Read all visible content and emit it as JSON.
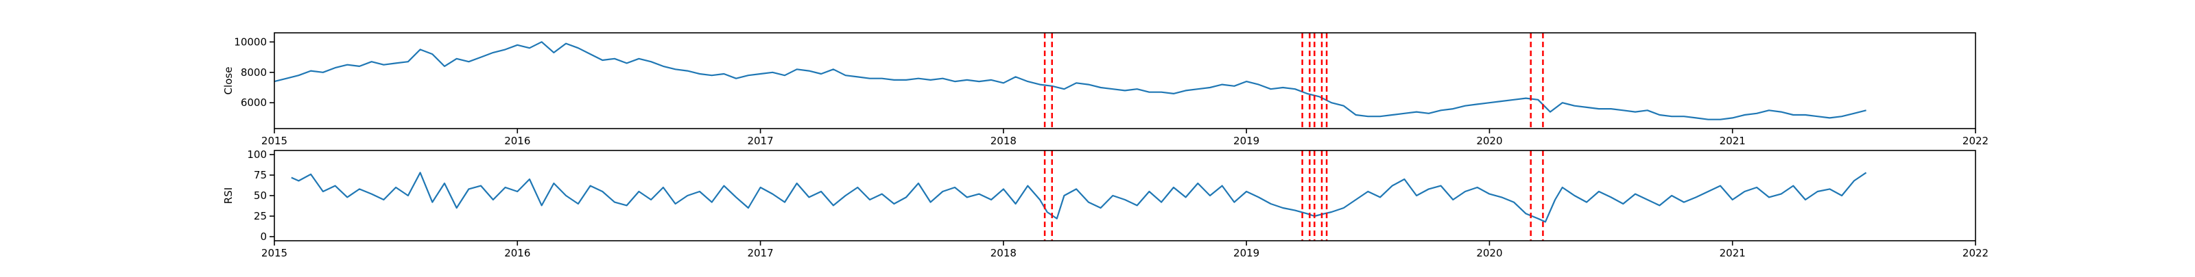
{
  "chart_data": [
    {
      "type": "line",
      "ylabel": "Close",
      "xlabel": "",
      "xlim": [
        2015.0,
        2022.0
      ],
      "ylim": [
        4300,
        10600
      ],
      "x_ticks": [
        2015,
        2016,
        2017,
        2018,
        2019,
        2020,
        2021,
        2022
      ],
      "x_tick_labels": [
        "2015",
        "2016",
        "2017",
        "2018",
        "2019",
        "2020",
        "2021",
        "2022"
      ],
      "y_ticks": [
        6000,
        8000,
        10000
      ],
      "y_tick_labels": [
        "6000",
        "8000",
        "10000"
      ],
      "grid": false,
      "line_color": "#1f77b4",
      "series": [
        {
          "x": [
            2015.0,
            2015.05,
            2015.1,
            2015.15,
            2015.2,
            2015.25,
            2015.3,
            2015.35,
            2015.4,
            2015.45,
            2015.5,
            2015.55,
            2015.6,
            2015.65,
            2015.7,
            2015.75,
            2015.8,
            2015.85,
            2015.9,
            2015.95,
            2016.0,
            2016.05,
            2016.1,
            2016.15,
            2016.2,
            2016.25,
            2016.3,
            2016.35,
            2016.4,
            2016.45,
            2016.5,
            2016.55,
            2016.6,
            2016.65,
            2016.7,
            2016.75,
            2016.8,
            2016.85,
            2016.9,
            2016.95,
            2017.0,
            2017.05,
            2017.1,
            2017.15,
            2017.2,
            2017.25,
            2017.3,
            2017.35,
            2017.4,
            2017.45,
            2017.5,
            2017.55,
            2017.6,
            2017.65,
            2017.7,
            2017.75,
            2017.8,
            2017.85,
            2017.9,
            2017.95,
            2018.0,
            2018.05,
            2018.1,
            2018.15,
            2018.2,
            2018.25,
            2018.3,
            2018.35,
            2018.4,
            2018.45,
            2018.5,
            2018.55,
            2018.6,
            2018.65,
            2018.7,
            2018.75,
            2018.8,
            2018.85,
            2018.9,
            2018.95,
            2019.0,
            2019.05,
            2019.1,
            2019.15,
            2019.2,
            2019.25,
            2019.3,
            2019.35,
            2019.4,
            2019.45,
            2019.5,
            2019.55,
            2019.6,
            2019.65,
            2019.7,
            2019.75,
            2019.8,
            2019.85,
            2019.9,
            2019.95,
            2020.0,
            2020.05,
            2020.1,
            2020.15,
            2020.2,
            2020.25,
            2020.3,
            2020.35,
            2020.4,
            2020.45,
            2020.5,
            2020.55,
            2020.6,
            2020.65,
            2020.7,
            2020.75,
            2020.8,
            2020.85,
            2020.9,
            2020.95,
            2021.0,
            2021.05,
            2021.1,
            2021.15,
            2021.2,
            2021.25,
            2021.3,
            2021.35,
            2021.4,
            2021.45,
            2021.5,
            2021.55
          ],
          "y": [
            7400,
            7600,
            7800,
            8100,
            8000,
            8300,
            8500,
            8400,
            8700,
            8500,
            8600,
            8700,
            9500,
            9200,
            8400,
            8900,
            8700,
            9000,
            9300,
            9500,
            9800,
            9600,
            10000,
            9300,
            9900,
            9600,
            9200,
            8800,
            8900,
            8600,
            8900,
            8700,
            8400,
            8200,
            8100,
            7900,
            7800,
            7900,
            7600,
            7800,
            7900,
            8000,
            7800,
            8200,
            8100,
            7900,
            8200,
            7800,
            7700,
            7600,
            7600,
            7500,
            7500,
            7600,
            7500,
            7600,
            7400,
            7500,
            7400,
            7500,
            7300,
            7700,
            7400,
            7200,
            7100,
            6900,
            7300,
            7200,
            7000,
            6900,
            6800,
            6900,
            6700,
            6700,
            6600,
            6800,
            6900,
            7000,
            7200,
            7100,
            7400,
            7200,
            6900,
            7000,
            6900,
            6600,
            6400,
            6000,
            5800,
            5200,
            5100,
            5100,
            5200,
            5300,
            5400,
            5300,
            5500,
            5600,
            5800,
            5900,
            6000,
            6100,
            6200,
            6300,
            6200,
            5400,
            6000,
            5800,
            5700,
            5600,
            5600,
            5500,
            5400,
            5500,
            5200,
            5100,
            5100,
            5000,
            4900,
            4900,
            5000,
            5200,
            5300,
            5500,
            5400,
            5200,
            5200,
            5100,
            5000,
            5100,
            5300,
            5500
          ]
        }
      ]
    },
    {
      "type": "line",
      "ylabel": "RSI",
      "xlabel": "",
      "xlim": [
        2015.0,
        2022.0
      ],
      "ylim": [
        -5,
        105
      ],
      "x_ticks": [
        2015,
        2016,
        2017,
        2018,
        2019,
        2020,
        2021,
        2022
      ],
      "x_tick_labels": [
        "2015",
        "2016",
        "2017",
        "2018",
        "2019",
        "2020",
        "2021",
        "2022"
      ],
      "y_ticks": [
        0,
        25,
        50,
        75,
        100
      ],
      "y_tick_labels": [
        "0",
        "25",
        "50",
        "75",
        "100"
      ],
      "grid": false,
      "line_color": "#1f77b4",
      "series": [
        {
          "x": [
            2015.07,
            2015.1,
            2015.15,
            2015.2,
            2015.25,
            2015.3,
            2015.35,
            2015.4,
            2015.45,
            2015.5,
            2015.55,
            2015.6,
            2015.65,
            2015.7,
            2015.75,
            2015.8,
            2015.85,
            2015.9,
            2015.95,
            2016.0,
            2016.05,
            2016.1,
            2016.15,
            2016.2,
            2016.25,
            2016.3,
            2016.35,
            2016.4,
            2016.45,
            2016.5,
            2016.55,
            2016.6,
            2016.65,
            2016.7,
            2016.75,
            2016.8,
            2016.85,
            2016.9,
            2016.95,
            2017.0,
            2017.05,
            2017.1,
            2017.15,
            2017.2,
            2017.25,
            2017.3,
            2017.35,
            2017.4,
            2017.45,
            2017.5,
            2017.55,
            2017.6,
            2017.65,
            2017.7,
            2017.75,
            2017.8,
            2017.85,
            2017.9,
            2017.95,
            2018.0,
            2018.05,
            2018.1,
            2018.15,
            2018.18,
            2018.22,
            2018.25,
            2018.3,
            2018.35,
            2018.4,
            2018.45,
            2018.5,
            2018.55,
            2018.6,
            2018.65,
            2018.7,
            2018.75,
            2018.8,
            2018.85,
            2018.9,
            2018.95,
            2019.0,
            2019.05,
            2019.1,
            2019.15,
            2019.2,
            2019.25,
            2019.28,
            2019.32,
            2019.35,
            2019.4,
            2019.45,
            2019.5,
            2019.55,
            2019.6,
            2019.65,
            2019.7,
            2019.75,
            2019.8,
            2019.85,
            2019.9,
            2019.95,
            2020.0,
            2020.05,
            2020.1,
            2020.15,
            2020.2,
            2020.23,
            2020.27,
            2020.3,
            2020.35,
            2020.4,
            2020.45,
            2020.5,
            2020.55,
            2020.6,
            2020.65,
            2020.7,
            2020.75,
            2020.8,
            2020.85,
            2020.9,
            2020.95,
            2021.0,
            2021.05,
            2021.1,
            2021.15,
            2021.2,
            2021.25,
            2021.3,
            2021.35,
            2021.4,
            2021.45,
            2021.5,
            2021.55
          ],
          "y": [
            72,
            68,
            76,
            55,
            62,
            48,
            58,
            52,
            45,
            60,
            50,
            78,
            42,
            65,
            35,
            58,
            62,
            45,
            60,
            55,
            70,
            38,
            65,
            50,
            40,
            62,
            55,
            42,
            38,
            55,
            45,
            60,
            40,
            50,
            55,
            42,
            62,
            48,
            35,
            60,
            52,
            42,
            65,
            48,
            55,
            38,
            50,
            60,
            45,
            52,
            40,
            48,
            65,
            42,
            55,
            60,
            48,
            52,
            45,
            58,
            40,
            62,
            45,
            30,
            22,
            50,
            58,
            42,
            35,
            50,
            45,
            38,
            55,
            42,
            60,
            48,
            65,
            50,
            62,
            42,
            55,
            48,
            40,
            35,
            32,
            28,
            25,
            28,
            30,
            35,
            45,
            55,
            48,
            62,
            70,
            50,
            58,
            62,
            45,
            55,
            60,
            52,
            48,
            42,
            28,
            22,
            18,
            45,
            60,
            50,
            42,
            55,
            48,
            40,
            52,
            45,
            38,
            50,
            42,
            48,
            55,
            62,
            45,
            55,
            60,
            48,
            52,
            62,
            45,
            55,
            58,
            50,
            68,
            78
          ]
        }
      ]
    }
  ],
  "signal_dates": [
    2018.17,
    2018.2,
    2019.23,
    2019.26,
    2019.28,
    2019.31,
    2019.33,
    2020.17,
    2020.22
  ],
  "signal_color": "#ff0000"
}
